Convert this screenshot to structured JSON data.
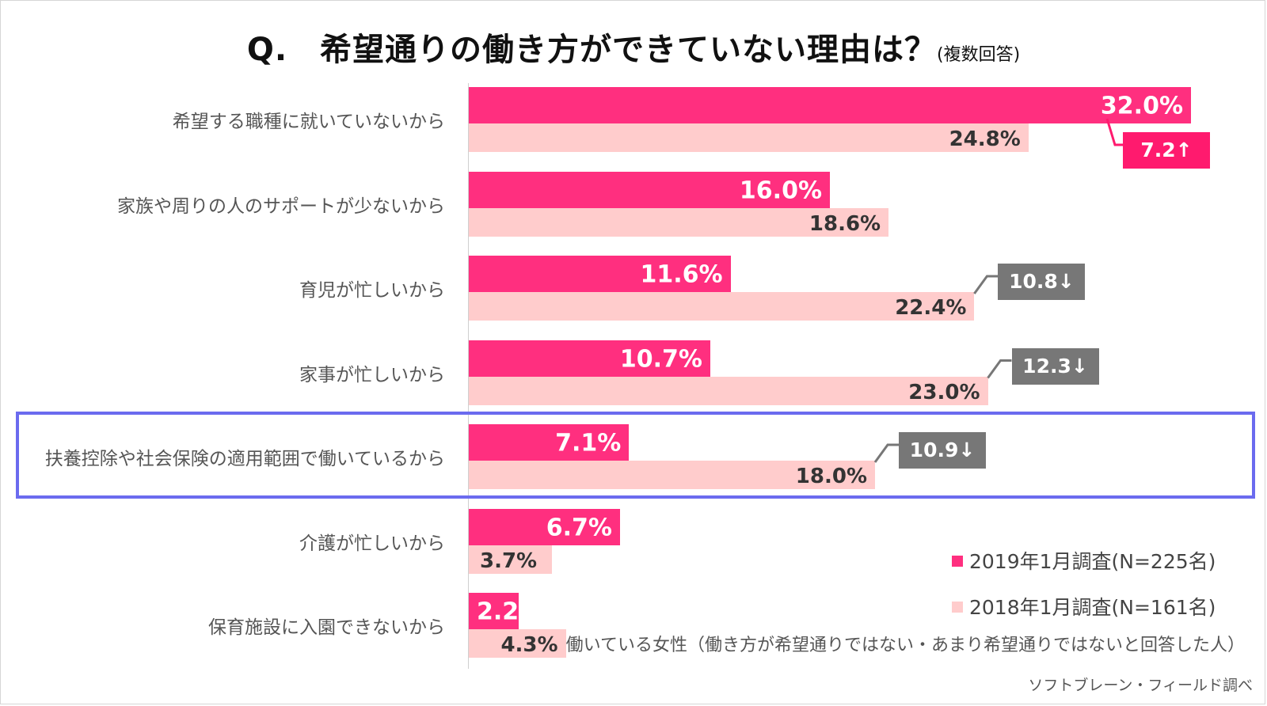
{
  "title": {
    "main": "Q.　希望通りの働き方ができていない理由は？",
    "sub": "(複数回答)"
  },
  "chart_data": {
    "type": "bar",
    "orientation": "horizontal",
    "categories": [
      "希望する職種に就いていないから",
      "家族や周りの人のサポートが少ないから",
      "育児が忙しいから",
      "家事が忙しいから",
      "扶養控除や社会保険の適用範囲で働いているから",
      "介護が忙しいから",
      "保育施設に入園できないから"
    ],
    "series": [
      {
        "name": "2019年1月調査(N=225名)",
        "values": [
          32.0,
          16.0,
          11.6,
          10.7,
          7.1,
          6.7,
          2.2
        ],
        "labels": [
          "32.0%",
          "16.0%",
          "11.6%",
          "10.7%",
          "7.1%",
          "6.7%",
          "2.2%"
        ],
        "color": "#ff2f7f"
      },
      {
        "name": "2018年1月調査(N=161名)",
        "values": [
          24.8,
          18.6,
          22.4,
          23.0,
          18.0,
          3.7,
          4.3
        ],
        "labels": [
          "24.8%",
          "18.6%",
          "22.4%",
          "23.0%",
          "18.0%",
          "3.7%",
          "4.3%"
        ],
        "color": "#ffcccc"
      }
    ],
    "differences": [
      {
        "category_index": 0,
        "label": "7.2↑",
        "color": "#ff1a6e"
      },
      {
        "category_index": 2,
        "label": "10.8↓",
        "color": "#777777"
      },
      {
        "category_index": 3,
        "label": "12.3↓",
        "color": "#777777"
      },
      {
        "category_index": 4,
        "label": "10.9↓",
        "color": "#777777"
      }
    ],
    "highlighted_category_index": 4,
    "xlim": [
      0,
      32.0
    ],
    "grid": false,
    "legend_position": "bottom-right"
  },
  "legend": {
    "items": [
      {
        "label": "2019年1月調査(N=225名)",
        "color": "#ff2f7f"
      },
      {
        "label": "2018年1月調査(N=161名)",
        "color": "#ffcccc"
      }
    ]
  },
  "note": "働いている女性（働き方が希望通りではない・あまり希望通りではないと回答した人）",
  "source": "ソフトブレーン・フィールド調べ"
}
